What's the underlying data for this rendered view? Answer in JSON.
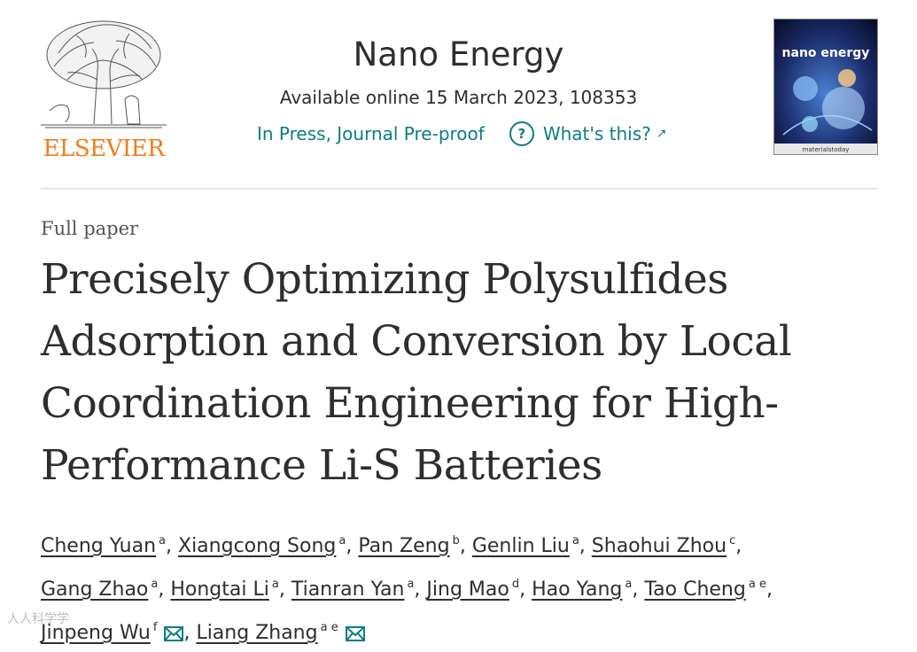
{
  "publisher": {
    "name": "ELSEVIER"
  },
  "journal": {
    "title": "Nano Energy",
    "availability": "Available online 15 March 2023, 108353",
    "status_link": "In Press, Journal Pre-proof",
    "help_link": "What's this?",
    "help_icon": "?",
    "cover_title": "nano energy",
    "cover_footer": "materialstoday"
  },
  "article": {
    "type": "Full paper",
    "title": "Precisely Optimizing Polysulfides Adsorption and Conversion by Local Coordination Engineering for High-Performance Li-S Batteries"
  },
  "authors": [
    {
      "name": "Cheng Yuan",
      "aff": "a"
    },
    {
      "name": "Xiangcong Song",
      "aff": "a"
    },
    {
      "name": "Pan Zeng",
      "aff": "b"
    },
    {
      "name": "Genlin Liu",
      "aff": "a"
    },
    {
      "name": "Shaohui Zhou",
      "aff": "c"
    },
    {
      "name": "Gang Zhao",
      "aff": "a"
    },
    {
      "name": "Hongtai Li",
      "aff": "a"
    },
    {
      "name": "Tianran Yan",
      "aff": "a"
    },
    {
      "name": "Jing Mao",
      "aff": "d"
    },
    {
      "name": "Hao Yang",
      "aff": "a"
    },
    {
      "name": "Tao Cheng",
      "aff": "a e"
    },
    {
      "name": "Jinpeng Wu",
      "aff": "f"
    },
    {
      "name": "Liang Zhang",
      "aff": "a e"
    }
  ],
  "watermark": "人人科学学",
  "colors": {
    "accent": "#0c7d85",
    "brand": "#f07d1c",
    "text": "#2e2e2e"
  }
}
